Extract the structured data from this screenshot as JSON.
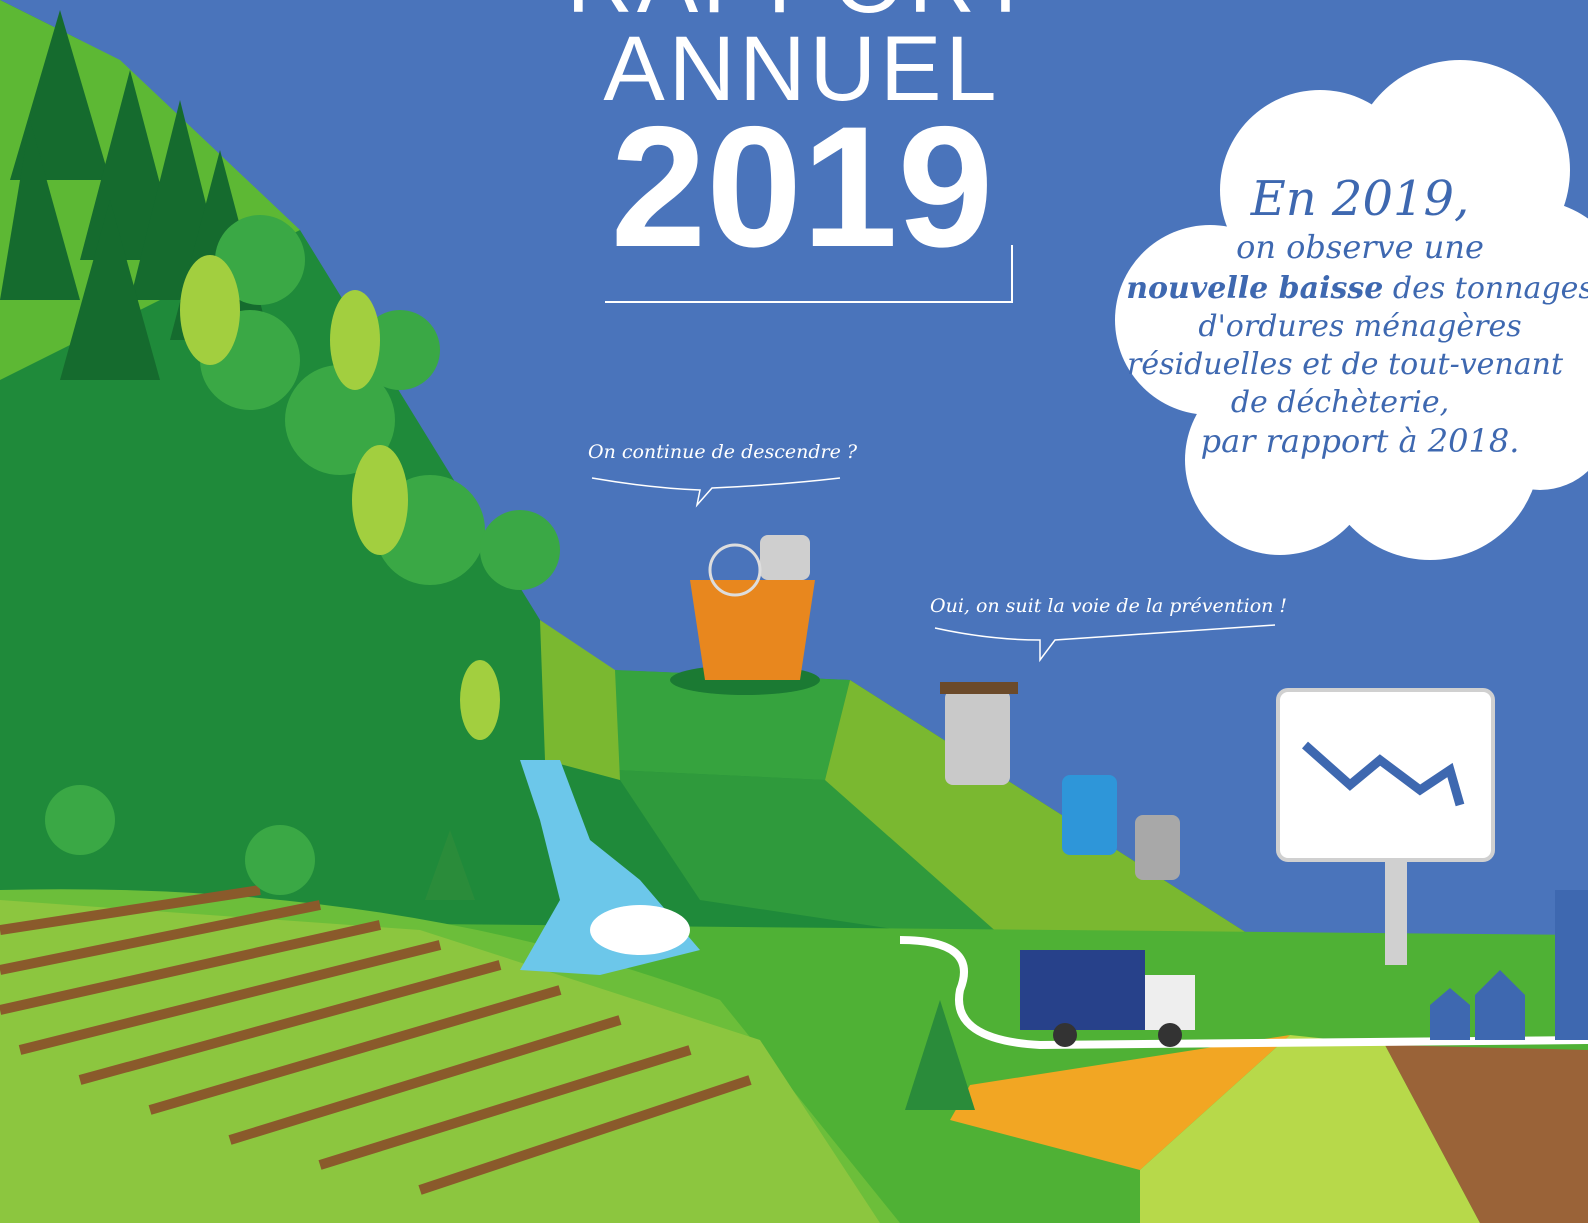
{
  "header": {
    "title_line1": "RAPPORT",
    "title_line2": "ANNUEL",
    "year": "2019"
  },
  "cloud": {
    "lines": [
      "En 2019,",
      "on observe une",
      {
        "bold": "nouvelle baisse",
        "rest": "des tonnages"
      },
      "d'ordures ménagères",
      "résiduelles et de tout-venant",
      "de déchèterie,",
      "par rapport à 2018."
    ]
  },
  "speech": [
    "On continue de descendre ?",
    "Oui, on suit la voie de la prévention !"
  ]
}
